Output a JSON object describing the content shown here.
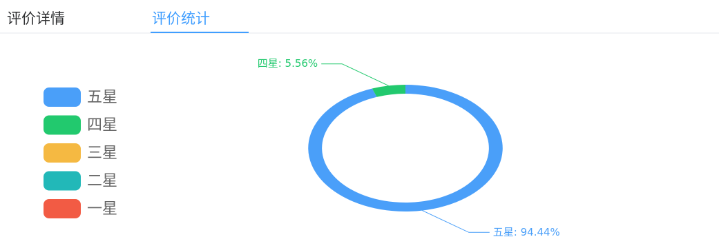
{
  "tabs": [
    "评价详情",
    "评价统计"
  ],
  "chart_data": {
    "type": "pie",
    "donut": true,
    "categories": [
      "五星",
      "四星",
      "三星",
      "二星",
      "一星"
    ],
    "values": [
      94.44,
      5.56,
      0,
      0,
      0
    ],
    "value_labels": [
      "五星: 94.44%",
      "四星: 5.56%",
      null,
      null,
      null
    ],
    "colors": [
      "#4a9ff9",
      "#22c96e",
      "#f5b942",
      "#22b8b8",
      "#f25b44"
    ],
    "legend": "left"
  }
}
